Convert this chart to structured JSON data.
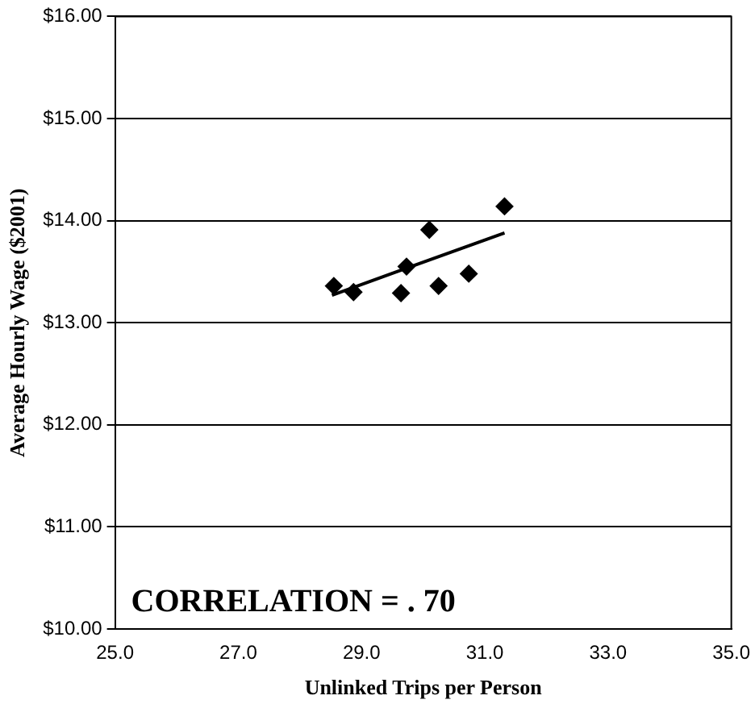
{
  "chart_data": {
    "type": "scatter",
    "xlabel": "Unlinked Trips per Person",
    "ylabel": "Average Hourly Wage ($2001)",
    "series": [
      {
        "type": "scatter",
        "color": "#000000",
        "marker": "diamond",
        "x": [
          28.55,
          28.87,
          29.64,
          29.73,
          30.1,
          30.25,
          30.74,
          31.32
        ],
        "values": [
          13.36,
          13.3,
          13.29,
          13.55,
          13.91,
          13.36,
          13.48,
          14.14
        ]
      },
      {
        "type": "line",
        "color": "#000000",
        "marker": "none",
        "x": [
          28.52,
          31.32
        ],
        "values": [
          13.27,
          13.88
        ]
      }
    ],
    "xlim": [
      25,
      35
    ],
    "xticks": [
      {
        "value": 25,
        "label": "25.0"
      },
      {
        "value": 27,
        "label": "27.0"
      },
      {
        "value": 29,
        "label": "29.0"
      },
      {
        "value": 31,
        "label": "31.0"
      },
      {
        "value": 33,
        "label": "33.0"
      },
      {
        "value": 35,
        "label": "35.0"
      }
    ],
    "ylim": [
      10,
      16
    ],
    "yticks": [
      {
        "value": 10,
        "label": "$10.00"
      },
      {
        "value": 11,
        "label": "$11.00"
      },
      {
        "value": 12,
        "label": "$12.00"
      },
      {
        "value": 13,
        "label": "$13.00"
      },
      {
        "value": 14,
        "label": "$14.00"
      },
      {
        "value": 15,
        "label": "$15.00"
      },
      {
        "value": 16,
        "label": "$16.00"
      }
    ],
    "grid": "y",
    "annotations": [
      "CORRELATION = . 70"
    ]
  }
}
